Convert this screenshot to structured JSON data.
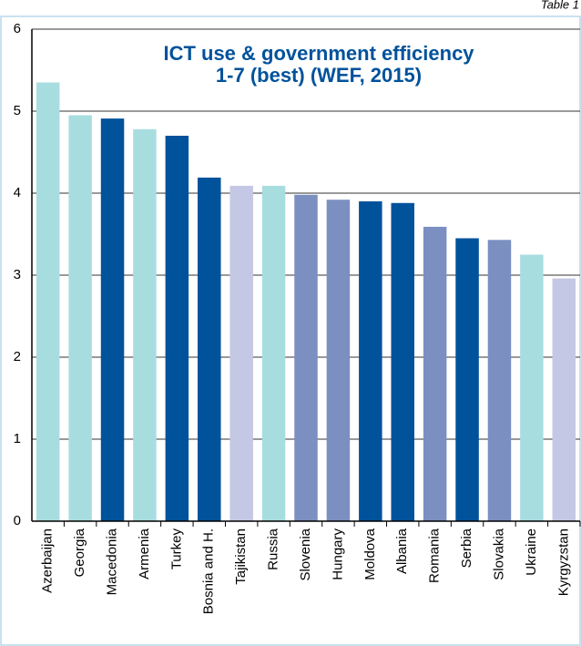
{
  "chart_data": {
    "type": "bar",
    "note": "Table 1",
    "title": [
      "ICT use & government efficiency",
      "1-7 (best) (WEF, 2015)"
    ],
    "categories": [
      "Azerbaijan",
      "Georgia",
      "Macedonia",
      "Armenia",
      "Turkey",
      "Bosnia and H.",
      "Tajikistan",
      "Russia",
      "Slovenia",
      "Hungary",
      "Moldova",
      "Albania",
      "Romania",
      "Serbia",
      "Slovakia",
      "Ukraine",
      "Kyrgyzstan"
    ],
    "values": [
      5.35,
      4.95,
      4.91,
      4.78,
      4.7,
      4.19,
      4.09,
      4.09,
      3.98,
      3.92,
      3.9,
      3.88,
      3.59,
      3.45,
      3.43,
      3.25,
      2.96
    ],
    "colors": [
      "#a8dde0",
      "#a8dde0",
      "#00529b",
      "#a8dde0",
      "#00529b",
      "#00529b",
      "#c5c8e4",
      "#a8dde0",
      "#7b8fc0",
      "#7b8fc0",
      "#00529b",
      "#00529b",
      "#7b8fc0",
      "#00529b",
      "#7b8fc0",
      "#a8dde0",
      "#c5c8e4"
    ],
    "ylim": [
      0,
      6
    ],
    "yticks": [
      0,
      1,
      2,
      3,
      4,
      5,
      6
    ],
    "grid": true
  }
}
